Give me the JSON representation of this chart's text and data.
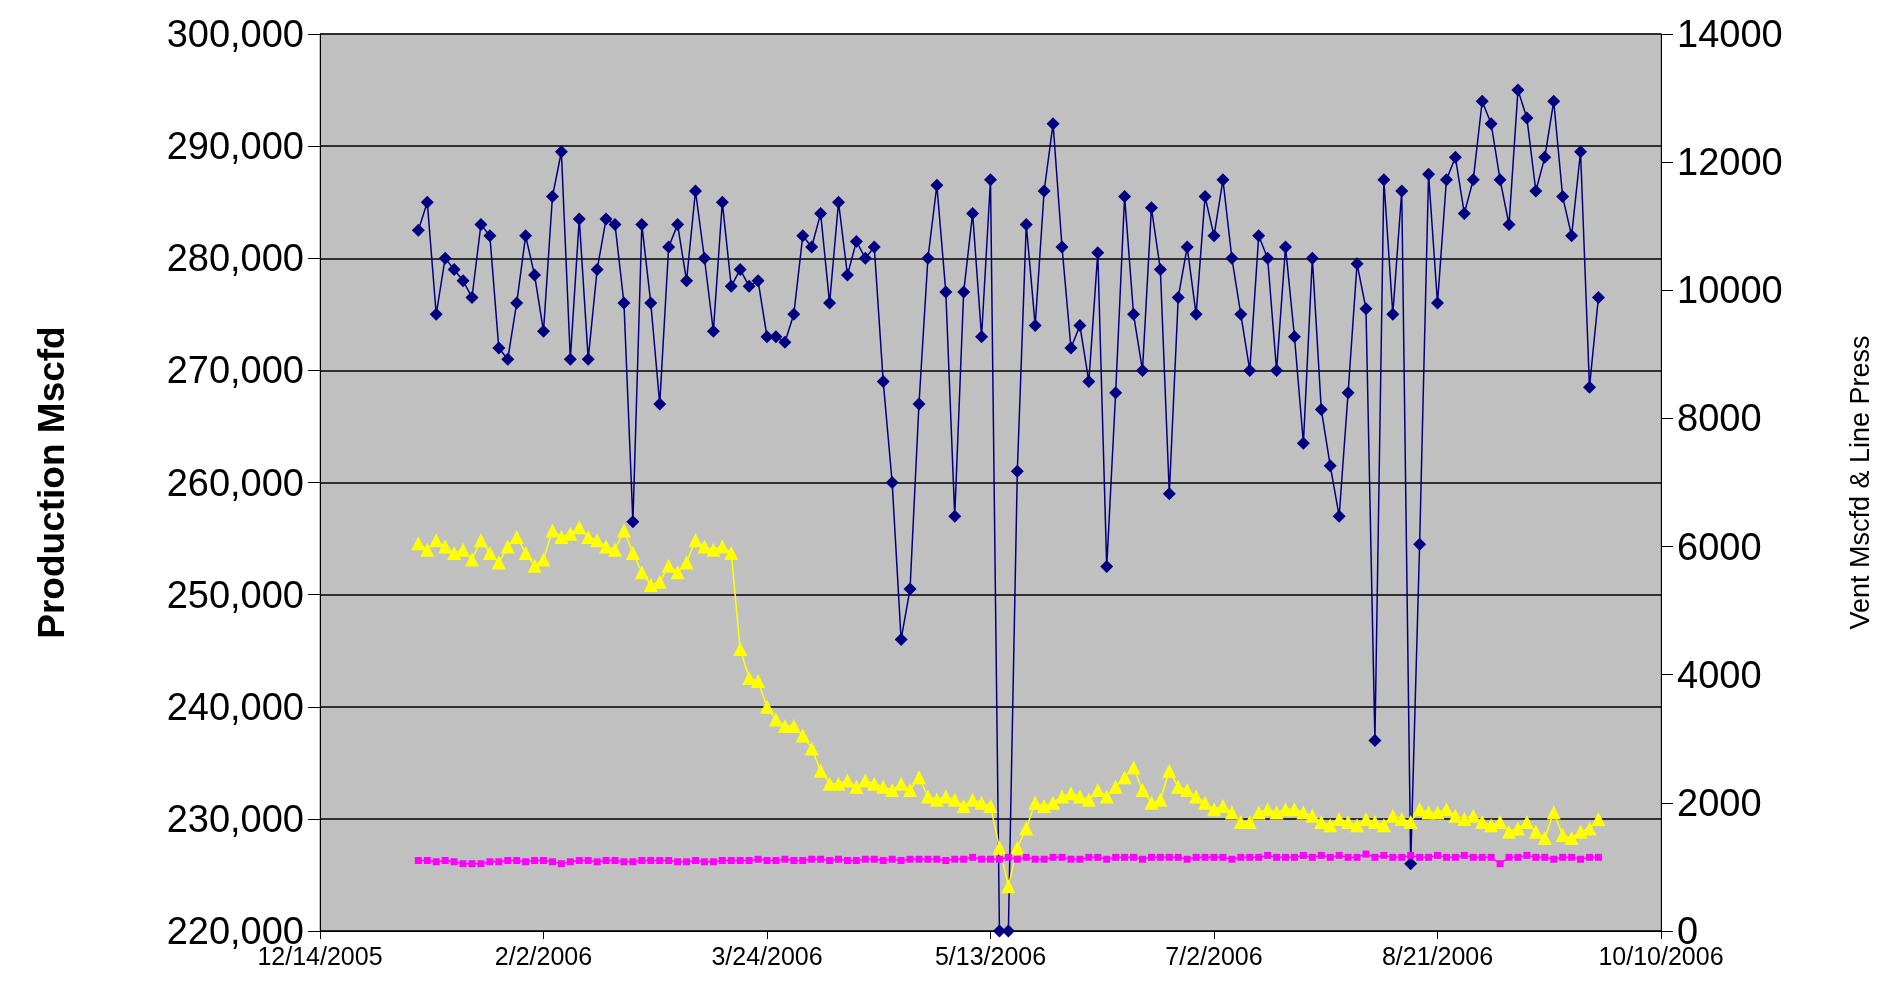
{
  "chart_data": {
    "type": "line",
    "ylabel": "Production Mscfd",
    "y2label": "Vent Mscfd & Line Press",
    "xlim": [
      "2005-12-14",
      "2006-10-10"
    ],
    "xticks": [
      {
        "value": "2005-12-14",
        "label": "12/14/2005"
      },
      {
        "value": "2006-02-02",
        "label": "2/2/2006"
      },
      {
        "value": "2006-03-24",
        "label": "3/24/2006"
      },
      {
        "value": "2006-05-13",
        "label": "5/13/2006"
      },
      {
        "value": "2006-07-02",
        "label": "7/2/2006"
      },
      {
        "value": "2006-08-21",
        "label": "8/21/2006"
      },
      {
        "value": "2006-10-10",
        "label": "10/10/2006"
      }
    ],
    "ylim": [
      220000,
      300000
    ],
    "yticks": [
      {
        "value": 220000,
        "label": "220,000"
      },
      {
        "value": 230000,
        "label": "230,000"
      },
      {
        "value": 240000,
        "label": "240,000"
      },
      {
        "value": 250000,
        "label": "250,000"
      },
      {
        "value": 260000,
        "label": "260,000"
      },
      {
        "value": 270000,
        "label": "270,000"
      },
      {
        "value": 280000,
        "label": "280,000"
      },
      {
        "value": 290000,
        "label": "290,000"
      },
      {
        "value": 300000,
        "label": "300,000"
      }
    ],
    "y2lim": [
      0,
      14000
    ],
    "y2ticks": [
      0,
      2000,
      4000,
      6000,
      8000,
      10000,
      12000,
      14000
    ],
    "grid": "y",
    "x": [
      "2006-01-05",
      "2006-01-07",
      "2006-01-09",
      "2006-01-11",
      "2006-01-13",
      "2006-01-15",
      "2006-01-17",
      "2006-01-19",
      "2006-01-21",
      "2006-01-23",
      "2006-01-25",
      "2006-01-27",
      "2006-01-29",
      "2006-01-31",
      "2006-02-02",
      "2006-02-04",
      "2006-02-06",
      "2006-02-08",
      "2006-02-10",
      "2006-02-12",
      "2006-02-14",
      "2006-02-16",
      "2006-02-18",
      "2006-02-20",
      "2006-02-22",
      "2006-02-24",
      "2006-02-26",
      "2006-02-28",
      "2006-03-02",
      "2006-03-04",
      "2006-03-06",
      "2006-03-08",
      "2006-03-10",
      "2006-03-12",
      "2006-03-14",
      "2006-03-16",
      "2006-03-18",
      "2006-03-20",
      "2006-03-22",
      "2006-03-24",
      "2006-03-26",
      "2006-03-28",
      "2006-03-30",
      "2006-04-01",
      "2006-04-03",
      "2006-04-05",
      "2006-04-07",
      "2006-04-09",
      "2006-04-11",
      "2006-04-13",
      "2006-04-15",
      "2006-04-17",
      "2006-04-19",
      "2006-04-21",
      "2006-04-23",
      "2006-04-25",
      "2006-04-27",
      "2006-04-29",
      "2006-05-01",
      "2006-05-03",
      "2006-05-05",
      "2006-05-07",
      "2006-05-09",
      "2006-05-11",
      "2006-05-13",
      "2006-05-15",
      "2006-05-17",
      "2006-05-19",
      "2006-05-21",
      "2006-05-23",
      "2006-05-25",
      "2006-05-27",
      "2006-05-29",
      "2006-05-31",
      "2006-06-02",
      "2006-06-04",
      "2006-06-06",
      "2006-06-08",
      "2006-06-10",
      "2006-06-12",
      "2006-06-14",
      "2006-06-16",
      "2006-06-18",
      "2006-06-20",
      "2006-06-22",
      "2006-06-24",
      "2006-06-26",
      "2006-06-28",
      "2006-06-30",
      "2006-07-02",
      "2006-07-04",
      "2006-07-06",
      "2006-07-08",
      "2006-07-10",
      "2006-07-12",
      "2006-07-14",
      "2006-07-16",
      "2006-07-18",
      "2006-07-20",
      "2006-07-22",
      "2006-07-24",
      "2006-07-26",
      "2006-07-28",
      "2006-07-30",
      "2006-08-01",
      "2006-08-03",
      "2006-08-05",
      "2006-08-07",
      "2006-08-09",
      "2006-08-11",
      "2006-08-13",
      "2006-08-15",
      "2006-08-17",
      "2006-08-19",
      "2006-08-21",
      "2006-08-23",
      "2006-08-25",
      "2006-08-27",
      "2006-08-29",
      "2006-08-31",
      "2006-09-02",
      "2006-09-04",
      "2006-09-06",
      "2006-09-08",
      "2006-09-10",
      "2006-09-12",
      "2006-09-14",
      "2006-09-16",
      "2006-09-18",
      "2006-09-20",
      "2006-09-22",
      "2006-09-24",
      "2006-09-26"
    ],
    "series": [
      {
        "color": "#000080",
        "marker": "diamond",
        "values": [
          282500,
          285000,
          275000,
          280000,
          279000,
          278000,
          276500,
          283000,
          282000,
          272000,
          271000,
          276000,
          282000,
          278500,
          273500,
          285500,
          289500,
          271000,
          283500,
          271000,
          279000,
          283500,
          283000,
          276000,
          256500,
          283000,
          276000,
          267000,
          281000,
          283000,
          278000,
          286000,
          280000,
          273500,
          285000,
          277500,
          279000,
          277500,
          278000,
          273000,
          273000,
          272500,
          275000,
          282000,
          281000,
          284000,
          276000,
          285000,
          278500,
          281500,
          280000,
          281000,
          269000,
          260000,
          246000,
          250500,
          267000,
          280000,
          286500,
          277000,
          257000,
          277000,
          284000,
          273000,
          287000,
          220000,
          220000,
          261000,
          283000,
          274000,
          286000,
          292000,
          281000,
          272000,
          274000,
          269000,
          280500,
          252500,
          268000,
          285500,
          275000,
          270000,
          284500,
          279000,
          259000,
          276500,
          281000,
          275000,
          285500,
          282000,
          287000,
          280000,
          275000,
          270000,
          282000,
          280000,
          270000,
          281000,
          273000,
          263500,
          280000,
          266500,
          261500,
          257000,
          268000,
          279500,
          275500,
          237000,
          287000,
          275000,
          286000,
          226000,
          254500,
          287500,
          276000,
          287000,
          289000,
          284000,
          287000,
          294000,
          292000,
          287000,
          283000,
          295000,
          292500,
          286000,
          289000,
          294000,
          285500,
          282000,
          289500,
          268500,
          276500
        ]
      },
      {
        "color": "#ffff00",
        "marker": "triangle",
        "axis": "y2",
        "values": [
          6050,
          5950,
          6100,
          6000,
          5900,
          5950,
          5800,
          6100,
          5900,
          5750,
          6000,
          6150,
          5900,
          5700,
          5800,
          6250,
          6150,
          6200,
          6300,
          6150,
          6100,
          6000,
          5950,
          6250,
          5900,
          5600,
          5400,
          5450,
          5700,
          5600,
          5750,
          6100,
          6000,
          5950,
          6000,
          5900,
          4400,
          3950,
          3900,
          3500,
          3300,
          3200,
          3200,
          3050,
          2850,
          2500,
          2300,
          2300,
          2350,
          2250,
          2350,
          2300,
          2250,
          2200,
          2300,
          2200,
          2400,
          2100,
          2050,
          2100,
          2050,
          1950,
          2050,
          2000,
          1950,
          1300,
          700,
          1300,
          1600,
          2000,
          1950,
          2000,
          2100,
          2150,
          2100,
          2050,
          2200,
          2100,
          2250,
          2400,
          2550,
          2200,
          2000,
          2050,
          2500,
          2250,
          2200,
          2100,
          2000,
          1900,
          1950,
          1850,
          1700,
          1700,
          1850,
          1900,
          1850,
          1900,
          1900,
          1850,
          1800,
          1700,
          1650,
          1750,
          1700,
          1650,
          1750,
          1700,
          1650,
          1800,
          1750,
          1700,
          1900,
          1850,
          1850,
          1900,
          1800,
          1750,
          1800,
          1700,
          1650,
          1700,
          1550,
          1600,
          1700,
          1550,
          1450,
          1850,
          1500,
          1450,
          1550,
          1600,
          1750
        ]
      },
      {
        "color": "#ff00ff",
        "marker": "square",
        "axis": "y2",
        "values": [
          1100,
          1100,
          1080,
          1100,
          1080,
          1050,
          1050,
          1050,
          1080,
          1080,
          1100,
          1100,
          1080,
          1100,
          1100,
          1080,
          1050,
          1080,
          1100,
          1100,
          1080,
          1100,
          1100,
          1080,
          1080,
          1100,
          1100,
          1100,
          1100,
          1080,
          1080,
          1100,
          1080,
          1080,
          1100,
          1100,
          1100,
          1100,
          1120,
          1100,
          1100,
          1120,
          1100,
          1100,
          1120,
          1120,
          1100,
          1120,
          1100,
          1100,
          1120,
          1120,
          1100,
          1120,
          1100,
          1120,
          1120,
          1120,
          1120,
          1100,
          1120,
          1120,
          1150,
          1120,
          1120,
          1120,
          1150,
          1120,
          1150,
          1120,
          1120,
          1150,
          1150,
          1120,
          1120,
          1150,
          1150,
          1120,
          1150,
          1150,
          1150,
          1120,
          1150,
          1150,
          1150,
          1150,
          1120,
          1150,
          1150,
          1150,
          1150,
          1120,
          1150,
          1150,
          1150,
          1180,
          1150,
          1150,
          1150,
          1180,
          1150,
          1180,
          1150,
          1180,
          1150,
          1150,
          1200,
          1150,
          1180,
          1150,
          1150,
          1180,
          1150,
          1150,
          1180,
          1150,
          1150,
          1180,
          1150,
          1150,
          1150,
          1050,
          1150,
          1150,
          1180,
          1150,
          1150,
          1120,
          1150,
          1150,
          1120,
          1150,
          1150
        ]
      }
    ]
  }
}
